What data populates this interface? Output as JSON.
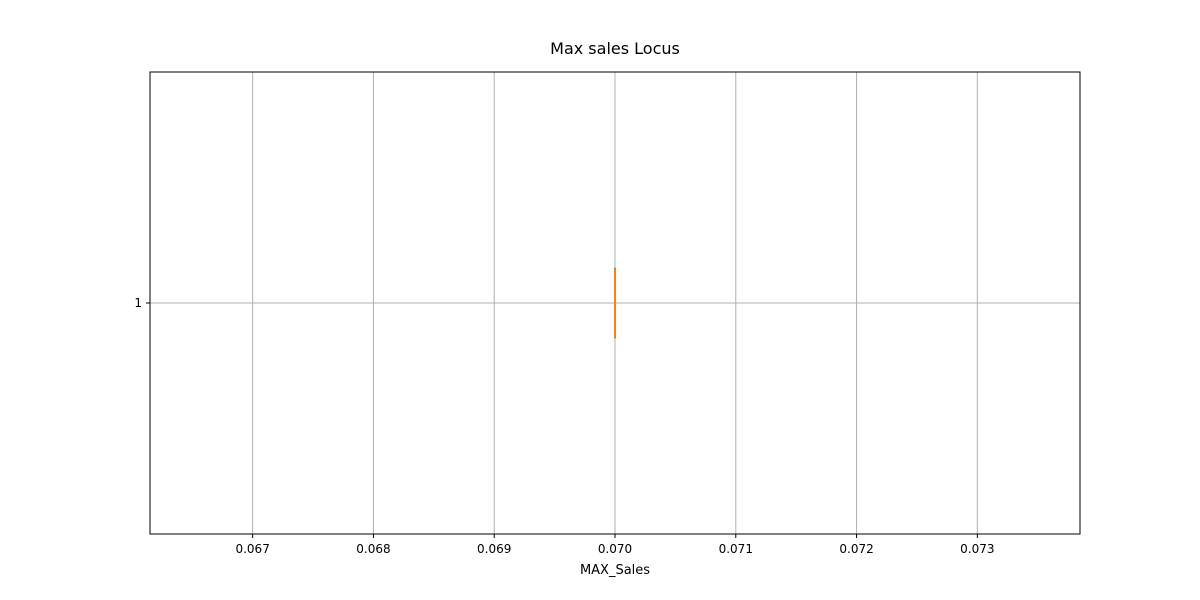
{
  "chart_data": {
    "type": "box",
    "orientation": "horizontal",
    "title": "Max sales Locus",
    "xlabel": "MAX_Sales",
    "ylabel": "",
    "xlim": [
      0.06615,
      0.07385
    ],
    "x_ticks": [
      0.067,
      0.068,
      0.069,
      0.07,
      0.071,
      0.072,
      0.073
    ],
    "x_tick_labels": [
      "0.067",
      "0.068",
      "0.069",
      "0.070",
      "0.071",
      "0.072",
      "0.073"
    ],
    "y_ticks": [
      1
    ],
    "y_tick_labels": [
      "1"
    ],
    "grid": true,
    "series": [
      {
        "position": 1,
        "min": 0.07,
        "q1": 0.07,
        "median": 0.07,
        "q3": 0.07,
        "max": 0.07
      }
    ],
    "colors": {
      "box": "#1f77b4",
      "median": "#ff7f0e",
      "grid": "#b0b0b0",
      "axes": "#000000"
    }
  }
}
